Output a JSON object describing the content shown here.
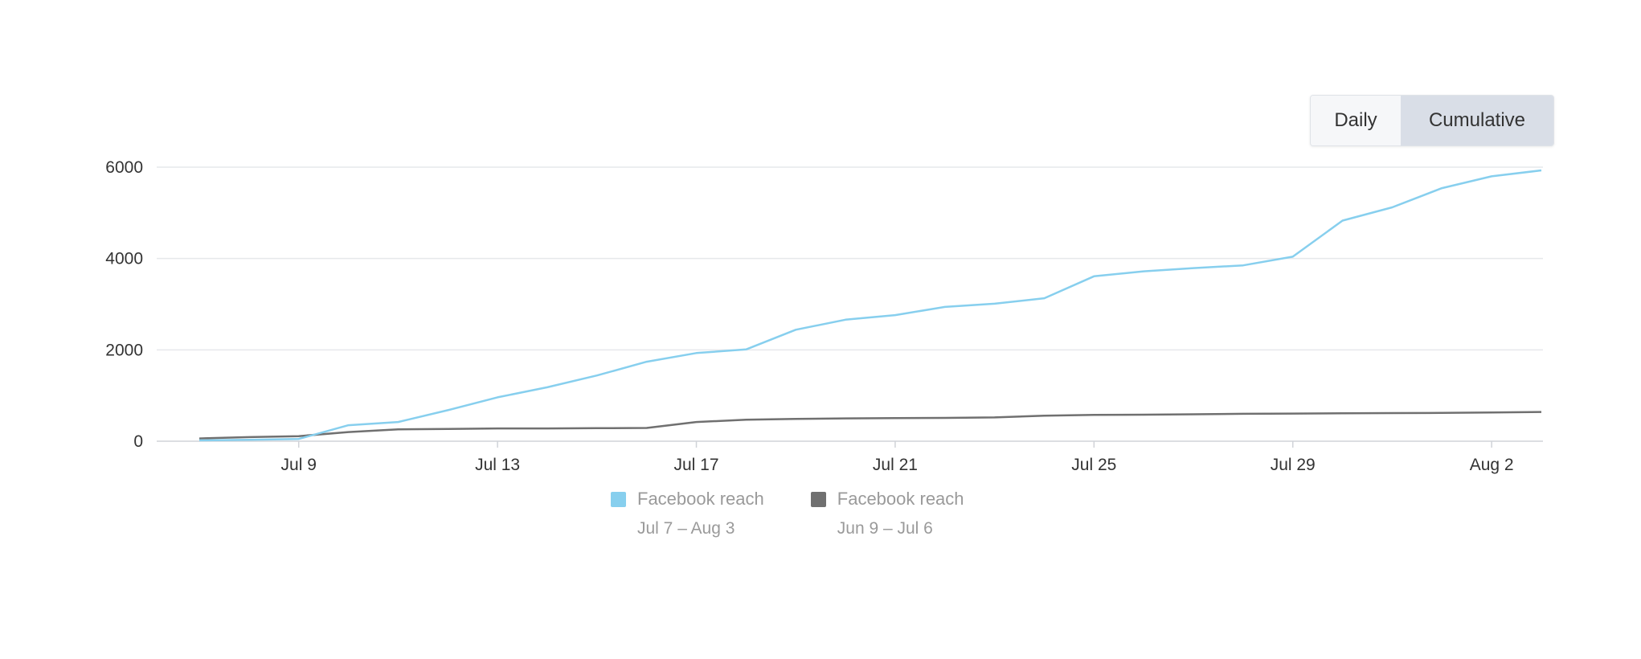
{
  "toggle": {
    "daily_label": "Daily",
    "cumulative_label": "Cumulative",
    "selected": "Cumulative"
  },
  "chart_data": {
    "type": "line",
    "title": "",
    "xlabel": "",
    "ylabel": "",
    "ylim": [
      0,
      6000
    ],
    "yticks": [
      0,
      2000,
      4000,
      6000
    ],
    "xtick_labels": [
      "Jul 9",
      "Jul 13",
      "Jul 17",
      "Jul 21",
      "Jul 25",
      "Jul 29",
      "Aug 2"
    ],
    "xtick_day_index": [
      2,
      6,
      10,
      14,
      18,
      22,
      26
    ],
    "grid": true,
    "legend_position": "bottom-center",
    "series": [
      {
        "name": "Facebook reach",
        "range_label": "Jul 7 – Aug 3",
        "color": "#87cfee",
        "values": [
          20,
          30,
          50,
          350,
          420,
          680,
          960,
          1180,
          1440,
          1740,
          1930,
          2010,
          2440,
          2660,
          2760,
          2940,
          3010,
          3130,
          3610,
          3720,
          3790,
          3850,
          4040,
          4830,
          5120,
          5540,
          5800,
          5930
        ]
      },
      {
        "name": "Facebook reach",
        "range_label": "Jun 9 – Jul 6",
        "color": "#707070",
        "values": [
          60,
          90,
          110,
          200,
          260,
          270,
          280,
          280,
          285,
          290,
          420,
          470,
          490,
          500,
          505,
          510,
          520,
          560,
          575,
          580,
          590,
          600,
          605,
          610,
          615,
          620,
          630,
          640
        ]
      }
    ]
  }
}
